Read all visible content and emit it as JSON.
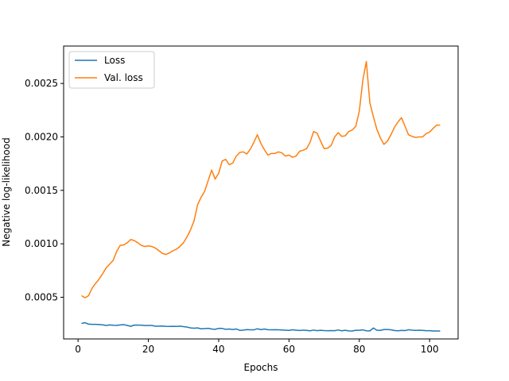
{
  "chart_data": {
    "type": "line",
    "xlabel": "Epochs",
    "ylabel": "Negative log-likelihood",
    "xlim": [
      -4.1,
      108.1
    ],
    "ylim": [
      0.00011,
      0.00285
    ],
    "xticks": [
      0,
      20,
      40,
      60,
      80,
      100
    ],
    "xtick_labels": [
      "0",
      "20",
      "40",
      "60",
      "80",
      "100"
    ],
    "yticks": [
      0.0005,
      0.001,
      0.0015,
      0.002,
      0.0025
    ],
    "ytick_labels": [
      "0.0005",
      "0.0010",
      "0.0015",
      "0.0020",
      "0.0025"
    ],
    "grid": false,
    "legend": "upper-left",
    "series": [
      {
        "name": "Loss",
        "color": "#1f77b4",
        "x": [
          1,
          2,
          3,
          4,
          5,
          6,
          7,
          8,
          9,
          10,
          11,
          12,
          13,
          14,
          15,
          16,
          17,
          18,
          19,
          20,
          21,
          22,
          23,
          24,
          25,
          26,
          27,
          28,
          29,
          30,
          31,
          32,
          33,
          34,
          35,
          36,
          37,
          38,
          39,
          40,
          41,
          42,
          43,
          44,
          45,
          46,
          47,
          48,
          49,
          50,
          51,
          52,
          53,
          54,
          55,
          56,
          57,
          58,
          59,
          60,
          61,
          62,
          63,
          64,
          65,
          66,
          67,
          68,
          69,
          70,
          71,
          72,
          73,
          74,
          75,
          76,
          77,
          78,
          79,
          80,
          81,
          82,
          83,
          84,
          85,
          86,
          87,
          88,
          89,
          90,
          91,
          92,
          93,
          94,
          95,
          96,
          97,
          98,
          99,
          100,
          101,
          102,
          103
        ],
        "values": [
          0.000255,
          0.000262,
          0.000248,
          0.000246,
          0.000246,
          0.000245,
          0.000242,
          0.000236,
          0.000241,
          0.000238,
          0.000237,
          0.000241,
          0.000244,
          0.000236,
          0.000228,
          0.00024,
          0.000239,
          0.000239,
          0.000235,
          0.000236,
          0.000236,
          0.000229,
          0.00023,
          0.000231,
          0.000228,
          0.000227,
          0.000228,
          0.000227,
          0.00023,
          0.000225,
          0.000221,
          0.000213,
          0.00021,
          0.000213,
          0.000205,
          0.000207,
          0.000209,
          0.000203,
          0.0002,
          0.000209,
          0.000208,
          0.0002,
          0.000203,
          0.000198,
          0.000203,
          0.00019,
          0.000193,
          0.000197,
          0.000195,
          0.000195,
          0.000205,
          0.000197,
          0.000203,
          0.000196,
          0.000195,
          0.000196,
          0.000195,
          0.000194,
          0.000192,
          0.00019,
          0.000195,
          0.000192,
          0.000189,
          0.000192,
          0.00019,
          0.000186,
          0.000193,
          0.000187,
          0.000191,
          0.000188,
          0.000187,
          0.000188,
          0.000187,
          0.000194,
          0.000186,
          0.000191,
          0.000185,
          0.000184,
          0.000191,
          0.000191,
          0.000195,
          0.000186,
          0.000185,
          0.000212,
          0.000192,
          0.00019,
          0.000198,
          0.000198,
          0.000195,
          0.000189,
          0.000186,
          0.00019,
          0.000188,
          0.000196,
          0.000192,
          0.00019,
          0.000192,
          0.00019,
          0.000187,
          0.000187,
          0.000184,
          0.000184,
          0.000183
        ]
      },
      {
        "name": "Val. loss",
        "color": "#ff7f0e",
        "x": [
          1,
          2,
          3,
          4,
          5,
          6,
          7,
          8,
          9,
          10,
          11,
          12,
          13,
          14,
          15,
          16,
          17,
          18,
          19,
          20,
          21,
          22,
          23,
          24,
          25,
          26,
          27,
          28,
          29,
          30,
          31,
          32,
          33,
          34,
          35,
          36,
          37,
          38,
          39,
          40,
          41,
          42,
          43,
          44,
          45,
          46,
          47,
          48,
          49,
          50,
          51,
          52,
          53,
          54,
          55,
          56,
          57,
          58,
          59,
          60,
          61,
          62,
          63,
          64,
          65,
          66,
          67,
          68,
          69,
          70,
          71,
          72,
          73,
          74,
          75,
          76,
          77,
          78,
          79,
          80,
          81,
          82,
          83,
          84,
          85,
          86,
          87,
          88,
          89,
          90,
          91,
          92,
          93,
          94,
          95,
          96,
          97,
          98,
          99,
          100,
          101,
          102,
          103
        ],
        "values": [
          0.000515,
          0.000495,
          0.000515,
          0.000585,
          0.00063,
          0.00067,
          0.00072,
          0.000775,
          0.00081,
          0.000845,
          0.00093,
          0.000985,
          0.00099,
          0.00101,
          0.00104,
          0.00103,
          0.00101,
          0.000985,
          0.000975,
          0.00098,
          0.000975,
          0.00096,
          0.000935,
          0.00091,
          0.0009,
          0.000915,
          0.000935,
          0.00095,
          0.000975,
          0.00101,
          0.001065,
          0.00113,
          0.001215,
          0.001365,
          0.001435,
          0.00149,
          0.00159,
          0.00169,
          0.001605,
          0.00166,
          0.001775,
          0.00179,
          0.00174,
          0.001755,
          0.00182,
          0.001855,
          0.00186,
          0.00184,
          0.001885,
          0.00195,
          0.00202,
          0.00194,
          0.00188,
          0.00183,
          0.001845,
          0.001845,
          0.00186,
          0.00185,
          0.00182,
          0.00183,
          0.00181,
          0.00182,
          0.001865,
          0.001875,
          0.00189,
          0.00195,
          0.00205,
          0.002035,
          0.00196,
          0.00189,
          0.001895,
          0.00192,
          0.002,
          0.00204,
          0.002005,
          0.00201,
          0.00205,
          0.002065,
          0.0021,
          0.00224,
          0.00253,
          0.002705,
          0.00232,
          0.00219,
          0.00207,
          0.00199,
          0.00193,
          0.00196,
          0.00202,
          0.00209,
          0.00214,
          0.00218,
          0.0021,
          0.00202,
          0.002005,
          0.001995,
          0.002,
          0.002,
          0.00203,
          0.002045,
          0.00208,
          0.00211,
          0.00211
        ]
      }
    ]
  }
}
